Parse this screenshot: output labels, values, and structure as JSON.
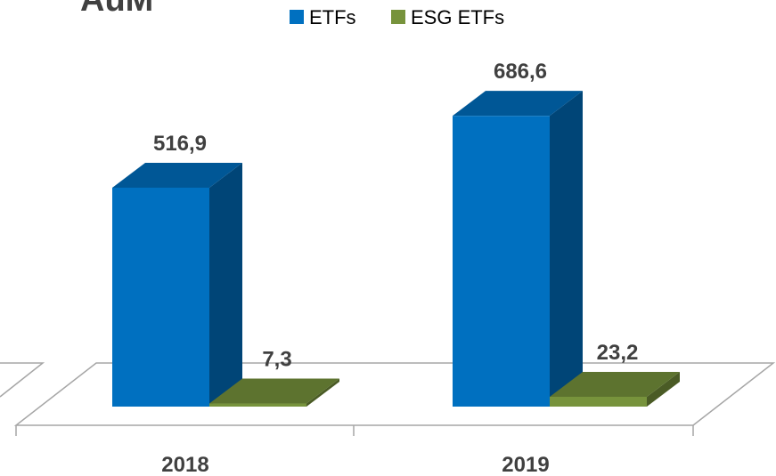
{
  "chart_data": {
    "type": "bar3d",
    "title": "AuM",
    "categories": [
      "2018",
      "2019"
    ],
    "series": [
      {
        "name": "ETFs",
        "color": "#0070c0",
        "values": [
          516.9,
          686.6
        ],
        "value_labels": [
          "516,9",
          "686,6"
        ]
      },
      {
        "name": "ESG ETFs",
        "color": "#77933c",
        "values": [
          7.3,
          23.2
        ],
        "value_labels": [
          "7,3",
          "23,2"
        ]
      }
    ],
    "legend": "top"
  }
}
